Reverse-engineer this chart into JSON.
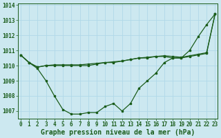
{
  "title": "Graphe pression niveau de la mer (hPa)",
  "background_color": "#cce8f0",
  "grid_color": "#b0d8e8",
  "line_color": "#1a5c1a",
  "marker_color": "#1a5c1a",
  "label_color": "#1a5c1a",
  "hours": [
    0,
    1,
    2,
    3,
    4,
    5,
    6,
    7,
    8,
    9,
    10,
    11,
    12,
    13,
    14,
    15,
    16,
    17,
    18,
    19,
    20,
    21,
    22,
    23
  ],
  "series1": [
    1010.7,
    1010.2,
    1009.8,
    1009.0,
    1008.0,
    1007.1,
    1006.8,
    1006.8,
    1006.9,
    1006.9,
    1007.3,
    1007.5,
    1007.0,
    1007.5,
    1008.5,
    1009.0,
    1009.5,
    1010.2,
    1010.5,
    1010.5,
    1011.0,
    1011.9,
    1012.7,
    1013.4
  ],
  "series2": [
    1010.7,
    1010.2,
    1009.9,
    1010.0,
    1010.0,
    1010.0,
    1010.0,
    1010.0,
    1010.0,
    1010.1,
    1010.2,
    1010.2,
    1010.3,
    1010.4,
    1010.5,
    1010.5,
    1010.6,
    1010.6,
    1010.5,
    1010.5,
    1010.6,
    1010.7,
    1010.8,
    1013.4
  ],
  "series3": [
    1010.7,
    1010.2,
    1009.9,
    1010.0,
    1010.05,
    1010.05,
    1010.05,
    1010.05,
    1010.1,
    1010.15,
    1010.2,
    1010.25,
    1010.3,
    1010.4,
    1010.5,
    1010.55,
    1010.6,
    1010.65,
    1010.6,
    1010.55,
    1010.65,
    1010.75,
    1010.85,
    1013.4
  ],
  "ylim_min": 1006.5,
  "ylim_max": 1014.1,
  "yticks": [
    1007,
    1008,
    1009,
    1010,
    1011,
    1012,
    1013,
    1014
  ],
  "title_fontsize": 7.0,
  "tick_fontsize": 5.5
}
